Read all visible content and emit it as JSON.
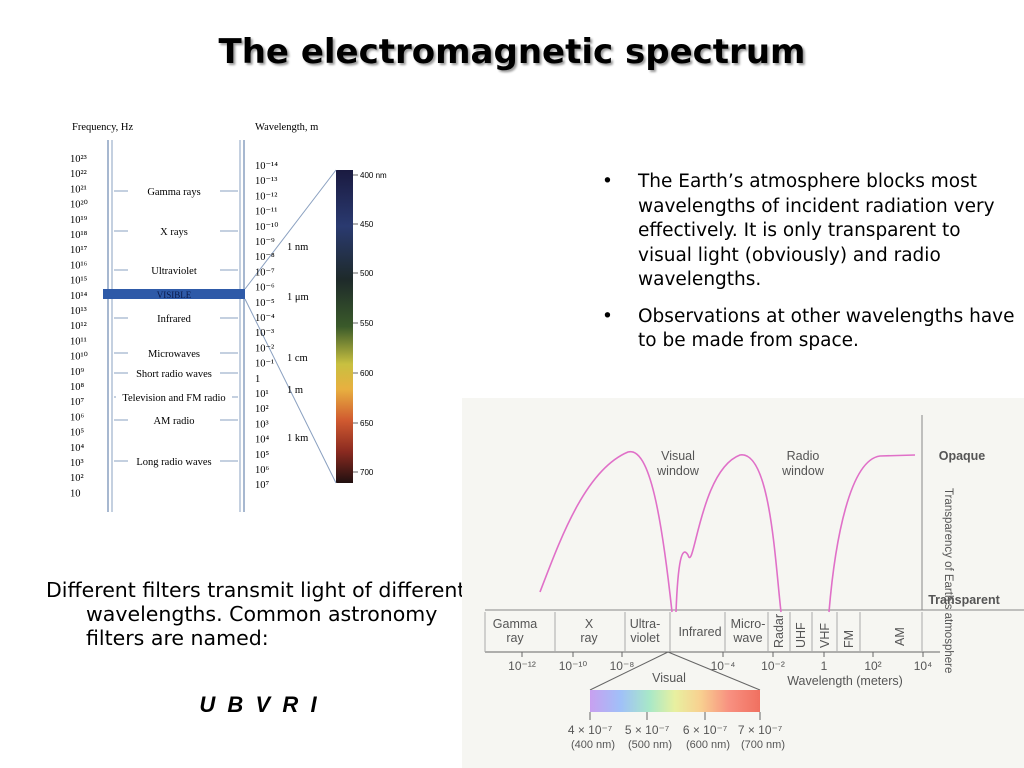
{
  "title": "The electromagnetic spectrum",
  "left_diagram": {
    "frequency_label": "Frequency, Hz",
    "wavelength_label": "Wavelength, m",
    "frequency_ticks": [
      "10²³",
      "10²²",
      "10²¹",
      "10²⁰",
      "10¹⁹",
      "10¹⁸",
      "10¹⁷",
      "10¹⁶",
      "10¹⁵",
      "10¹⁴",
      "10¹³",
      "10¹²",
      "10¹¹",
      "10¹⁰",
      "10⁹",
      "10⁸",
      "10⁷",
      "10⁶",
      "10⁵",
      "10⁴",
      "10³",
      "10²",
      "10"
    ],
    "wavelength_ticks": [
      "10⁻¹⁴",
      "10⁻¹³",
      "10⁻¹²",
      "10⁻¹¹",
      "10⁻¹⁰",
      "10⁻⁹",
      "10⁻⁸",
      "10⁻⁷",
      "10⁻⁶",
      "10⁻⁵",
      "10⁻⁴",
      "10⁻³",
      "10⁻²",
      "10⁻¹",
      "1",
      "10¹",
      "10²",
      "10³",
      "10⁴",
      "10⁵",
      "10⁶",
      "10⁷"
    ],
    "wavelength_units": [
      "1 nm",
      "1 μm",
      "1 cm",
      "1 m",
      "1 km"
    ],
    "bands": [
      "Gamma rays",
      "X rays",
      "Ultraviolet",
      "VISIBLE",
      "Infrared",
      "Microwaves",
      "Short radio waves",
      "Television and FM radio",
      "AM radio",
      "Long radio waves"
    ],
    "visible_scale": [
      "400 nm",
      "450",
      "500",
      "550",
      "600",
      "650",
      "700"
    ]
  },
  "bullets": [
    "The Earth’s atmosphere blocks most wavelengths of incident radiation very effectively.  It is only transparent to visual light (obviously) and radio wavelengths.",
    "Observations at other wavelengths have to be made from space."
  ],
  "filters": {
    "text": "Different filters transmit light of different wavelengths. Common astronomy filters are named:",
    "names": "U  B  V  R  I"
  },
  "atmosphere_diagram": {
    "window_labels": [
      "Visual window",
      "Radio window"
    ],
    "opaque": "Opaque",
    "transparent": "Transparent",
    "axis_title": "Transparency of Earth’s atmosphere",
    "bands": [
      "Gamma ray",
      "X ray",
      "Ultra-violet",
      "Infrared",
      "Micro-wave",
      "Radar",
      "UHF",
      "VHF",
      "FM",
      "AM"
    ],
    "wavelength_ticks": [
      "10⁻¹²",
      "10⁻¹⁰",
      "10⁻⁸",
      "10⁻⁴",
      "10⁻²",
      "1",
      "10²",
      "10⁴"
    ],
    "axis_label": "Wavelength (meters)",
    "visual_label": "Visual",
    "visual_ticks": [
      "4 × 10⁻⁷",
      "5 × 10⁻⁷",
      "6 × 10⁻⁷",
      "7 × 10⁻⁷"
    ],
    "visual_nm": [
      "(400 nm)",
      "(500 nm)",
      "(600 nm)",
      "(700 nm)"
    ]
  }
}
